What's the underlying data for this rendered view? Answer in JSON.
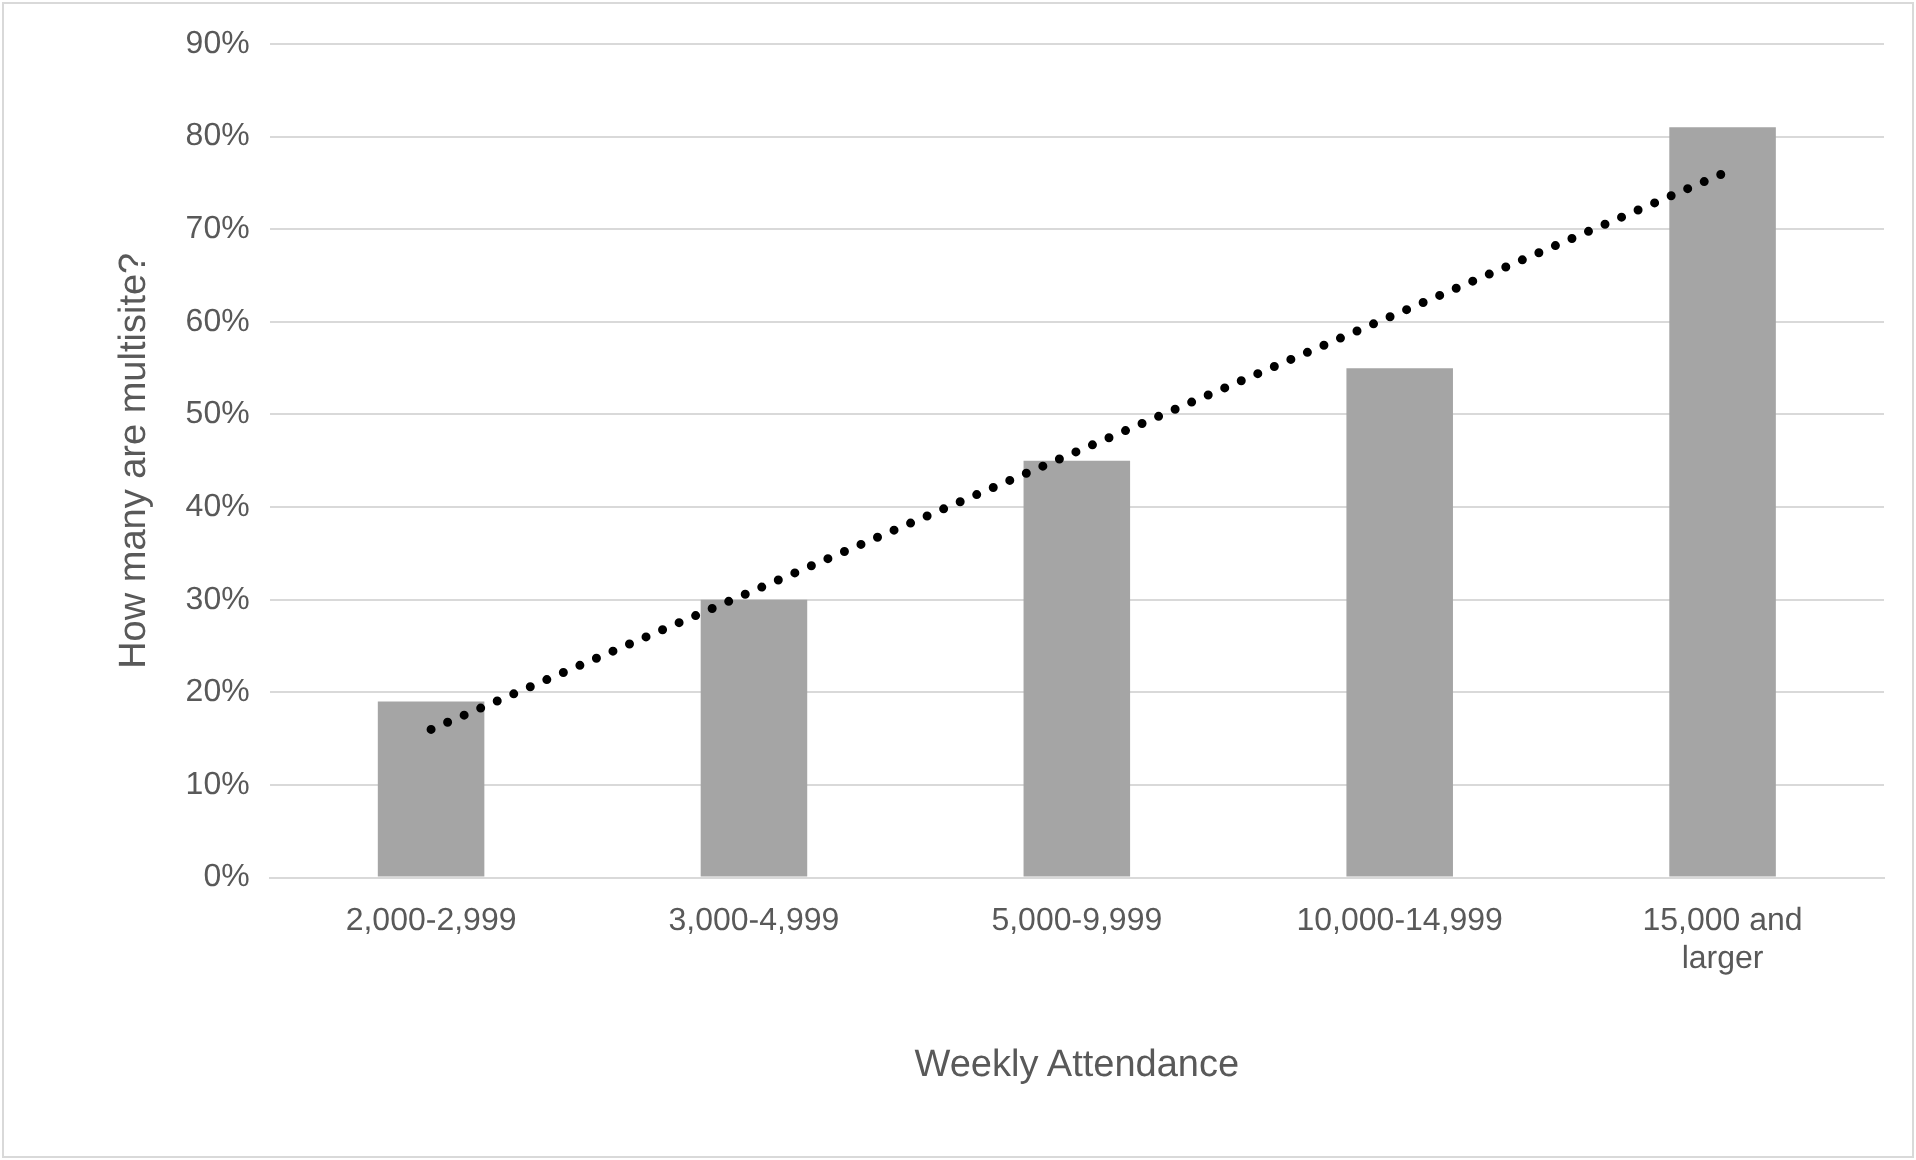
{
  "chart_data": {
    "type": "bar",
    "xlabel": "Weekly Attendance",
    "ylabel": "How many are multisite?",
    "categories": [
      "2,000-2,999",
      "3,000-4,999",
      "5,000-9,999",
      "10,000-14,999",
      "15,000 and larger"
    ],
    "series": [
      {
        "color": "#a5a5a5",
        "values": [
          19,
          30,
          45,
          55,
          81
        ]
      },
      {
        "type": "line",
        "color": "#000000",
        "values": [
          16,
          31,
          46,
          61,
          76
        ],
        "marker": "none",
        "line_style": "dotted"
      }
    ],
    "ylim": [
      0,
      90
    ],
    "yticks": [
      {
        "value": 0,
        "label": "0%"
      },
      {
        "value": 10,
        "label": "10%"
      },
      {
        "value": 20,
        "label": "20%"
      },
      {
        "value": 30,
        "label": "30%"
      },
      {
        "value": 40,
        "label": "40%"
      },
      {
        "value": 50,
        "label": "50%"
      },
      {
        "value": 60,
        "label": "60%"
      },
      {
        "value": 70,
        "label": "70%"
      },
      {
        "value": 80,
        "label": "80%"
      },
      {
        "value": 90,
        "label": "90%"
      }
    ],
    "grid": "y",
    "legend": false
  }
}
